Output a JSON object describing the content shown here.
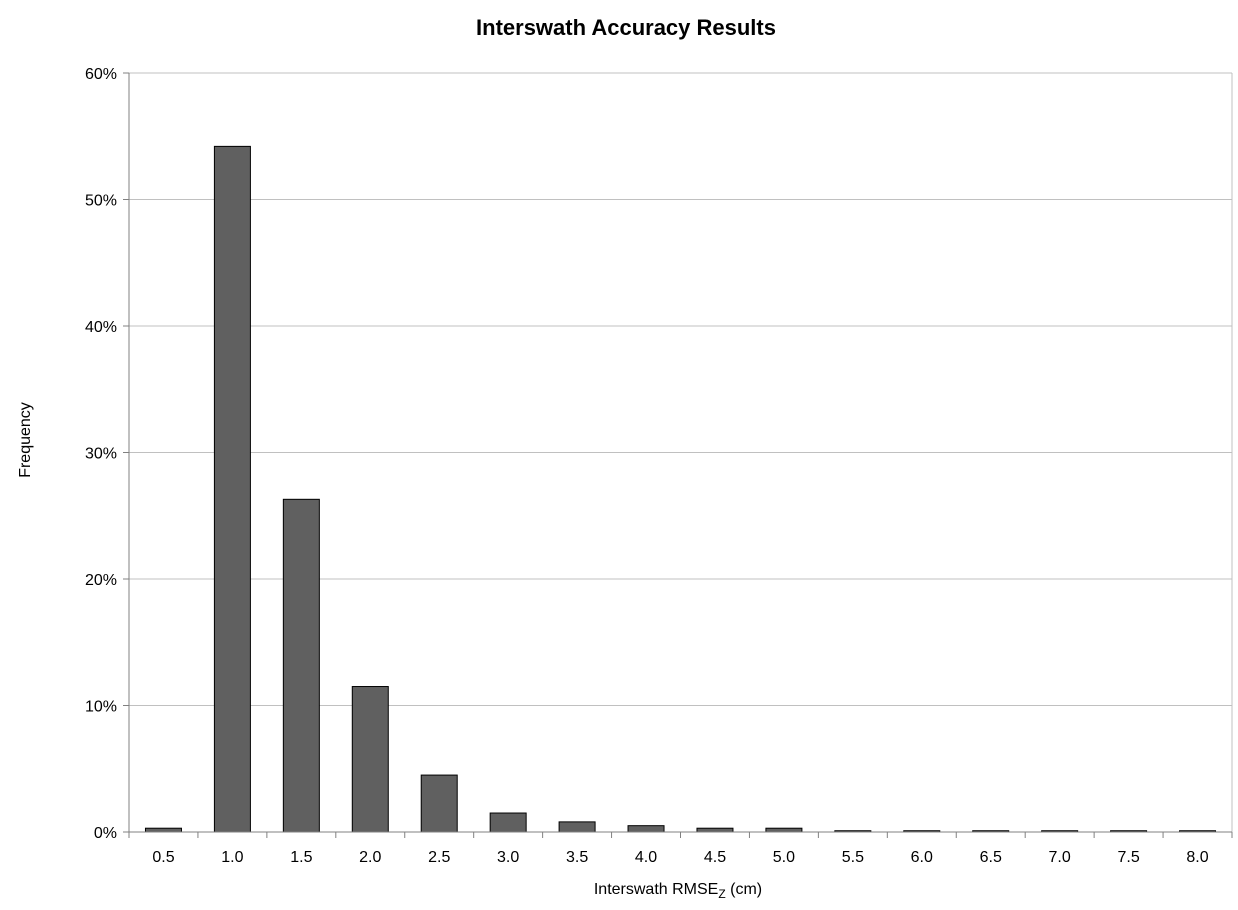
{
  "chart_data": {
    "type": "bar",
    "title": "Interswath Accuracy Results",
    "xlabel": {
      "main": "Interswath RMSE",
      "subscript": "Z",
      "suffix": " (cm)"
    },
    "ylabel": "Frequency",
    "categories": [
      "0.5",
      "1.0",
      "1.5",
      "2.0",
      "2.5",
      "3.0",
      "3.5",
      "4.0",
      "4.5",
      "5.0",
      "5.5",
      "6.0",
      "6.5",
      "7.0",
      "7.5",
      "8.0"
    ],
    "values": [
      0.3,
      54.2,
      26.3,
      11.5,
      4.5,
      1.5,
      0.8,
      0.5,
      0.3,
      0.3,
      0.1,
      0.1,
      0.1,
      0.1,
      0.1,
      0.1
    ],
    "ylim": [
      0,
      60
    ],
    "yticks": [
      0,
      10,
      20,
      30,
      40,
      50,
      60
    ],
    "ytick_labels": [
      "0%",
      "10%",
      "20%",
      "30%",
      "40%",
      "50%",
      "60%"
    ],
    "grid": true,
    "legend": "none",
    "colors": {
      "bar_fill": "#606060",
      "bar_stroke": "#000000",
      "grid": "#c0c0c0",
      "axis": "#808080"
    }
  }
}
